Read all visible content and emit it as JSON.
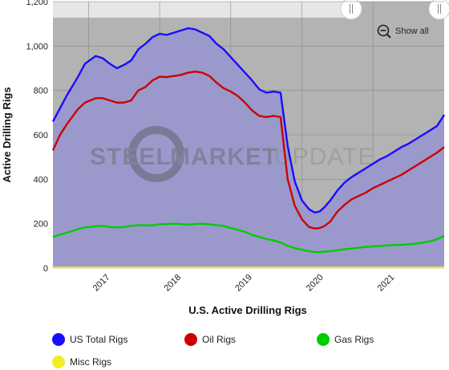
{
  "chart_data": {
    "type": "area",
    "title": "",
    "xlabel": "U.S. Active Drilling Rigs",
    "ylabel": "Active Drilling Rigs",
    "ylim": [
      0,
      1200
    ],
    "yticks": [
      "0",
      "200",
      "400",
      "600",
      "800",
      "1,000",
      "1,200"
    ],
    "xticks": [
      "2017",
      "2018",
      "2019",
      "2020",
      "2021"
    ],
    "x": [
      2016.4,
      2016.5,
      2016.6,
      2016.75,
      2016.85,
      2017.0,
      2017.1,
      2017.2,
      2017.3,
      2017.4,
      2017.5,
      2017.6,
      2017.7,
      2017.8,
      2017.9,
      2018.0,
      2018.1,
      2018.2,
      2018.3,
      2018.4,
      2018.5,
      2018.6,
      2018.7,
      2018.8,
      2018.9,
      2019.0,
      2019.1,
      2019.2,
      2019.3,
      2019.4,
      2019.5,
      2019.6,
      2019.7,
      2019.8,
      2019.9,
      2020.0,
      2020.08,
      2020.15,
      2020.22,
      2020.3,
      2020.4,
      2020.5,
      2020.6,
      2020.7,
      2020.8,
      2020.9,
      2021.0,
      2021.1,
      2021.2,
      2021.3,
      2021.4,
      2021.5,
      2021.6,
      2021.7,
      2021.8,
      2021.9
    ],
    "series": [
      {
        "name": "US Total Rigs",
        "color": "#1a0dff",
        "values": [
          660,
          720,
          780,
          860,
          920,
          955,
          945,
          920,
          900,
          915,
          935,
          985,
          1010,
          1040,
          1055,
          1050,
          1060,
          1070,
          1080,
          1075,
          1060,
          1045,
          1010,
          985,
          950,
          915,
          880,
          845,
          805,
          790,
          795,
          790,
          550,
          390,
          305,
          265,
          250,
          255,
          275,
          305,
          350,
          385,
          410,
          430,
          450,
          470,
          490,
          505,
          525,
          545,
          560,
          580,
          600,
          620,
          640,
          690
        ]
      },
      {
        "name": "Oil Rigs",
        "color": "#cc0000",
        "values": [
          530,
          600,
          650,
          715,
          745,
          765,
          765,
          755,
          745,
          745,
          755,
          800,
          815,
          845,
          862,
          860,
          865,
          870,
          880,
          885,
          880,
          865,
          835,
          810,
          795,
          775,
          745,
          710,
          685,
          680,
          685,
          680,
          400,
          280,
          220,
          185,
          178,
          180,
          190,
          210,
          255,
          285,
          310,
          325,
          340,
          360,
          375,
          390,
          405,
          420,
          440,
          460,
          480,
          500,
          520,
          545
        ]
      },
      {
        "name": "Gas Rigs",
        "color": "#00cc00",
        "values": [
          140,
          150,
          160,
          175,
          183,
          188,
          190,
          185,
          183,
          185,
          190,
          193,
          192,
          193,
          197,
          198,
          200,
          198,
          196,
          198,
          200,
          197,
          193,
          190,
          180,
          172,
          163,
          150,
          140,
          131,
          125,
          115,
          100,
          90,
          82,
          76,
          72,
          72,
          74,
          76,
          80,
          85,
          88,
          92,
          95,
          98,
          100,
          102,
          104,
          105,
          107,
          110,
          115,
          120,
          130,
          145
        ]
      },
      {
        "name": "Misc Rigs",
        "color": "#eeee22",
        "values": [
          3,
          3,
          3,
          3,
          3,
          3,
          3,
          3,
          3,
          3,
          3,
          3,
          3,
          3,
          3,
          3,
          3,
          3,
          3,
          3,
          3,
          3,
          3,
          3,
          3,
          3,
          3,
          3,
          3,
          3,
          3,
          3,
          3,
          3,
          3,
          3,
          3,
          3,
          3,
          3,
          3,
          3,
          3,
          3,
          3,
          3,
          3,
          3,
          3,
          3,
          3,
          3,
          3,
          3,
          3,
          3
        ]
      }
    ],
    "legend_position": "bottom",
    "grid": true,
    "colors": {
      "plot_background": "#b3b3b3",
      "area_fill": "#9b99cc",
      "grid": "#888888",
      "navigator": "#e6e6e6"
    }
  },
  "controls": {
    "show_all_label": "Show all",
    "show_all_icon": "zoom-out-icon"
  },
  "watermark": {
    "word1": "STEEL",
    "word2": "MARKET",
    "word3": "UPDATE"
  }
}
